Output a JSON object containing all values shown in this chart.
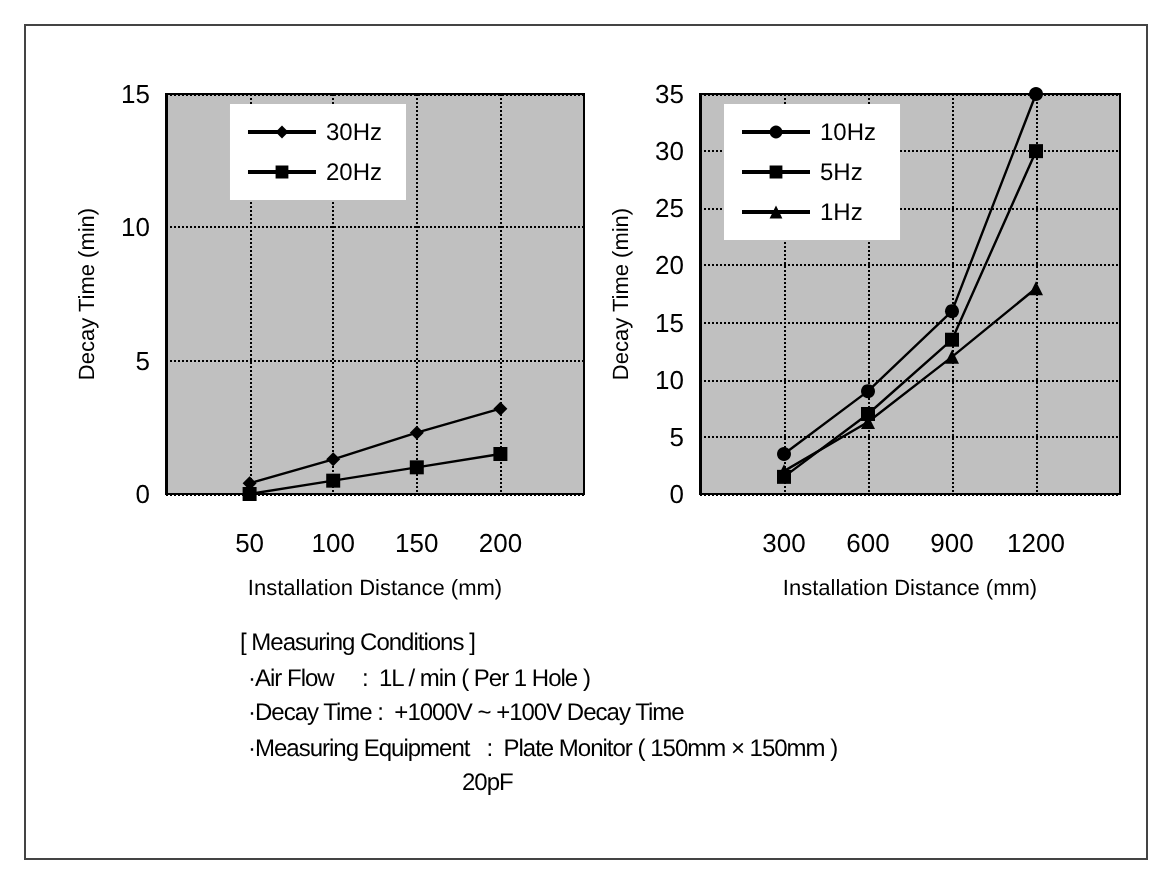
{
  "chart_data": [
    {
      "type": "line",
      "xlabel": "Installation Distance (mm)",
      "ylabel": "Decay Time (min)",
      "x": [
        50,
        100,
        150,
        200
      ],
      "xlim": [
        0,
        250
      ],
      "xticks": [
        50,
        100,
        150,
        200
      ],
      "ylim": [
        0,
        15
      ],
      "yticks": [
        0,
        5,
        10,
        15
      ],
      "grid": true,
      "legend": "top",
      "series": [
        {
          "name": "30Hz",
          "color": "#000000",
          "marker": "diamond",
          "values": [
            0.4,
            1.3,
            2.3,
            3.2
          ]
        },
        {
          "name": "20Hz",
          "color": "#000000",
          "marker": "square",
          "values": [
            0.0,
            0.5,
            1.0,
            1.5
          ]
        }
      ]
    },
    {
      "type": "line",
      "xlabel": "Installation Distance (mm)",
      "ylabel": "Decay Time (min)",
      "x": [
        300,
        600,
        900,
        1200
      ],
      "xlim": [
        0,
        1500
      ],
      "xticks": [
        300,
        600,
        900,
        1200
      ],
      "ylim": [
        0,
        35
      ],
      "yticks": [
        0,
        5,
        10,
        15,
        20,
        25,
        30,
        35
      ],
      "grid": true,
      "legend": "top left",
      "series": [
        {
          "name": "10Hz",
          "color": "#000000",
          "marker": "circle",
          "values": [
            3.5,
            9,
            16,
            35
          ]
        },
        {
          "name": "5Hz",
          "color": "#000000",
          "marker": "square",
          "values": [
            1.5,
            7,
            13.5,
            30
          ]
        },
        {
          "name": "1Hz",
          "color": "#000000",
          "marker": "triangle",
          "values": [
            2,
            6.3,
            12,
            18
          ]
        }
      ]
    },
    {
      "type": "other",
      "annotations": [
        "[ Measuring Conditions ]",
        "·Air Flow     :  1L / min ( Per 1 Hole )",
        "·Decay Time :  +1000V ~ +100V Decay Time",
        "·Measuring Equipment   :  Plate Monitor ( 150mm × 150mm )",
        "20pF"
      ]
    }
  ]
}
